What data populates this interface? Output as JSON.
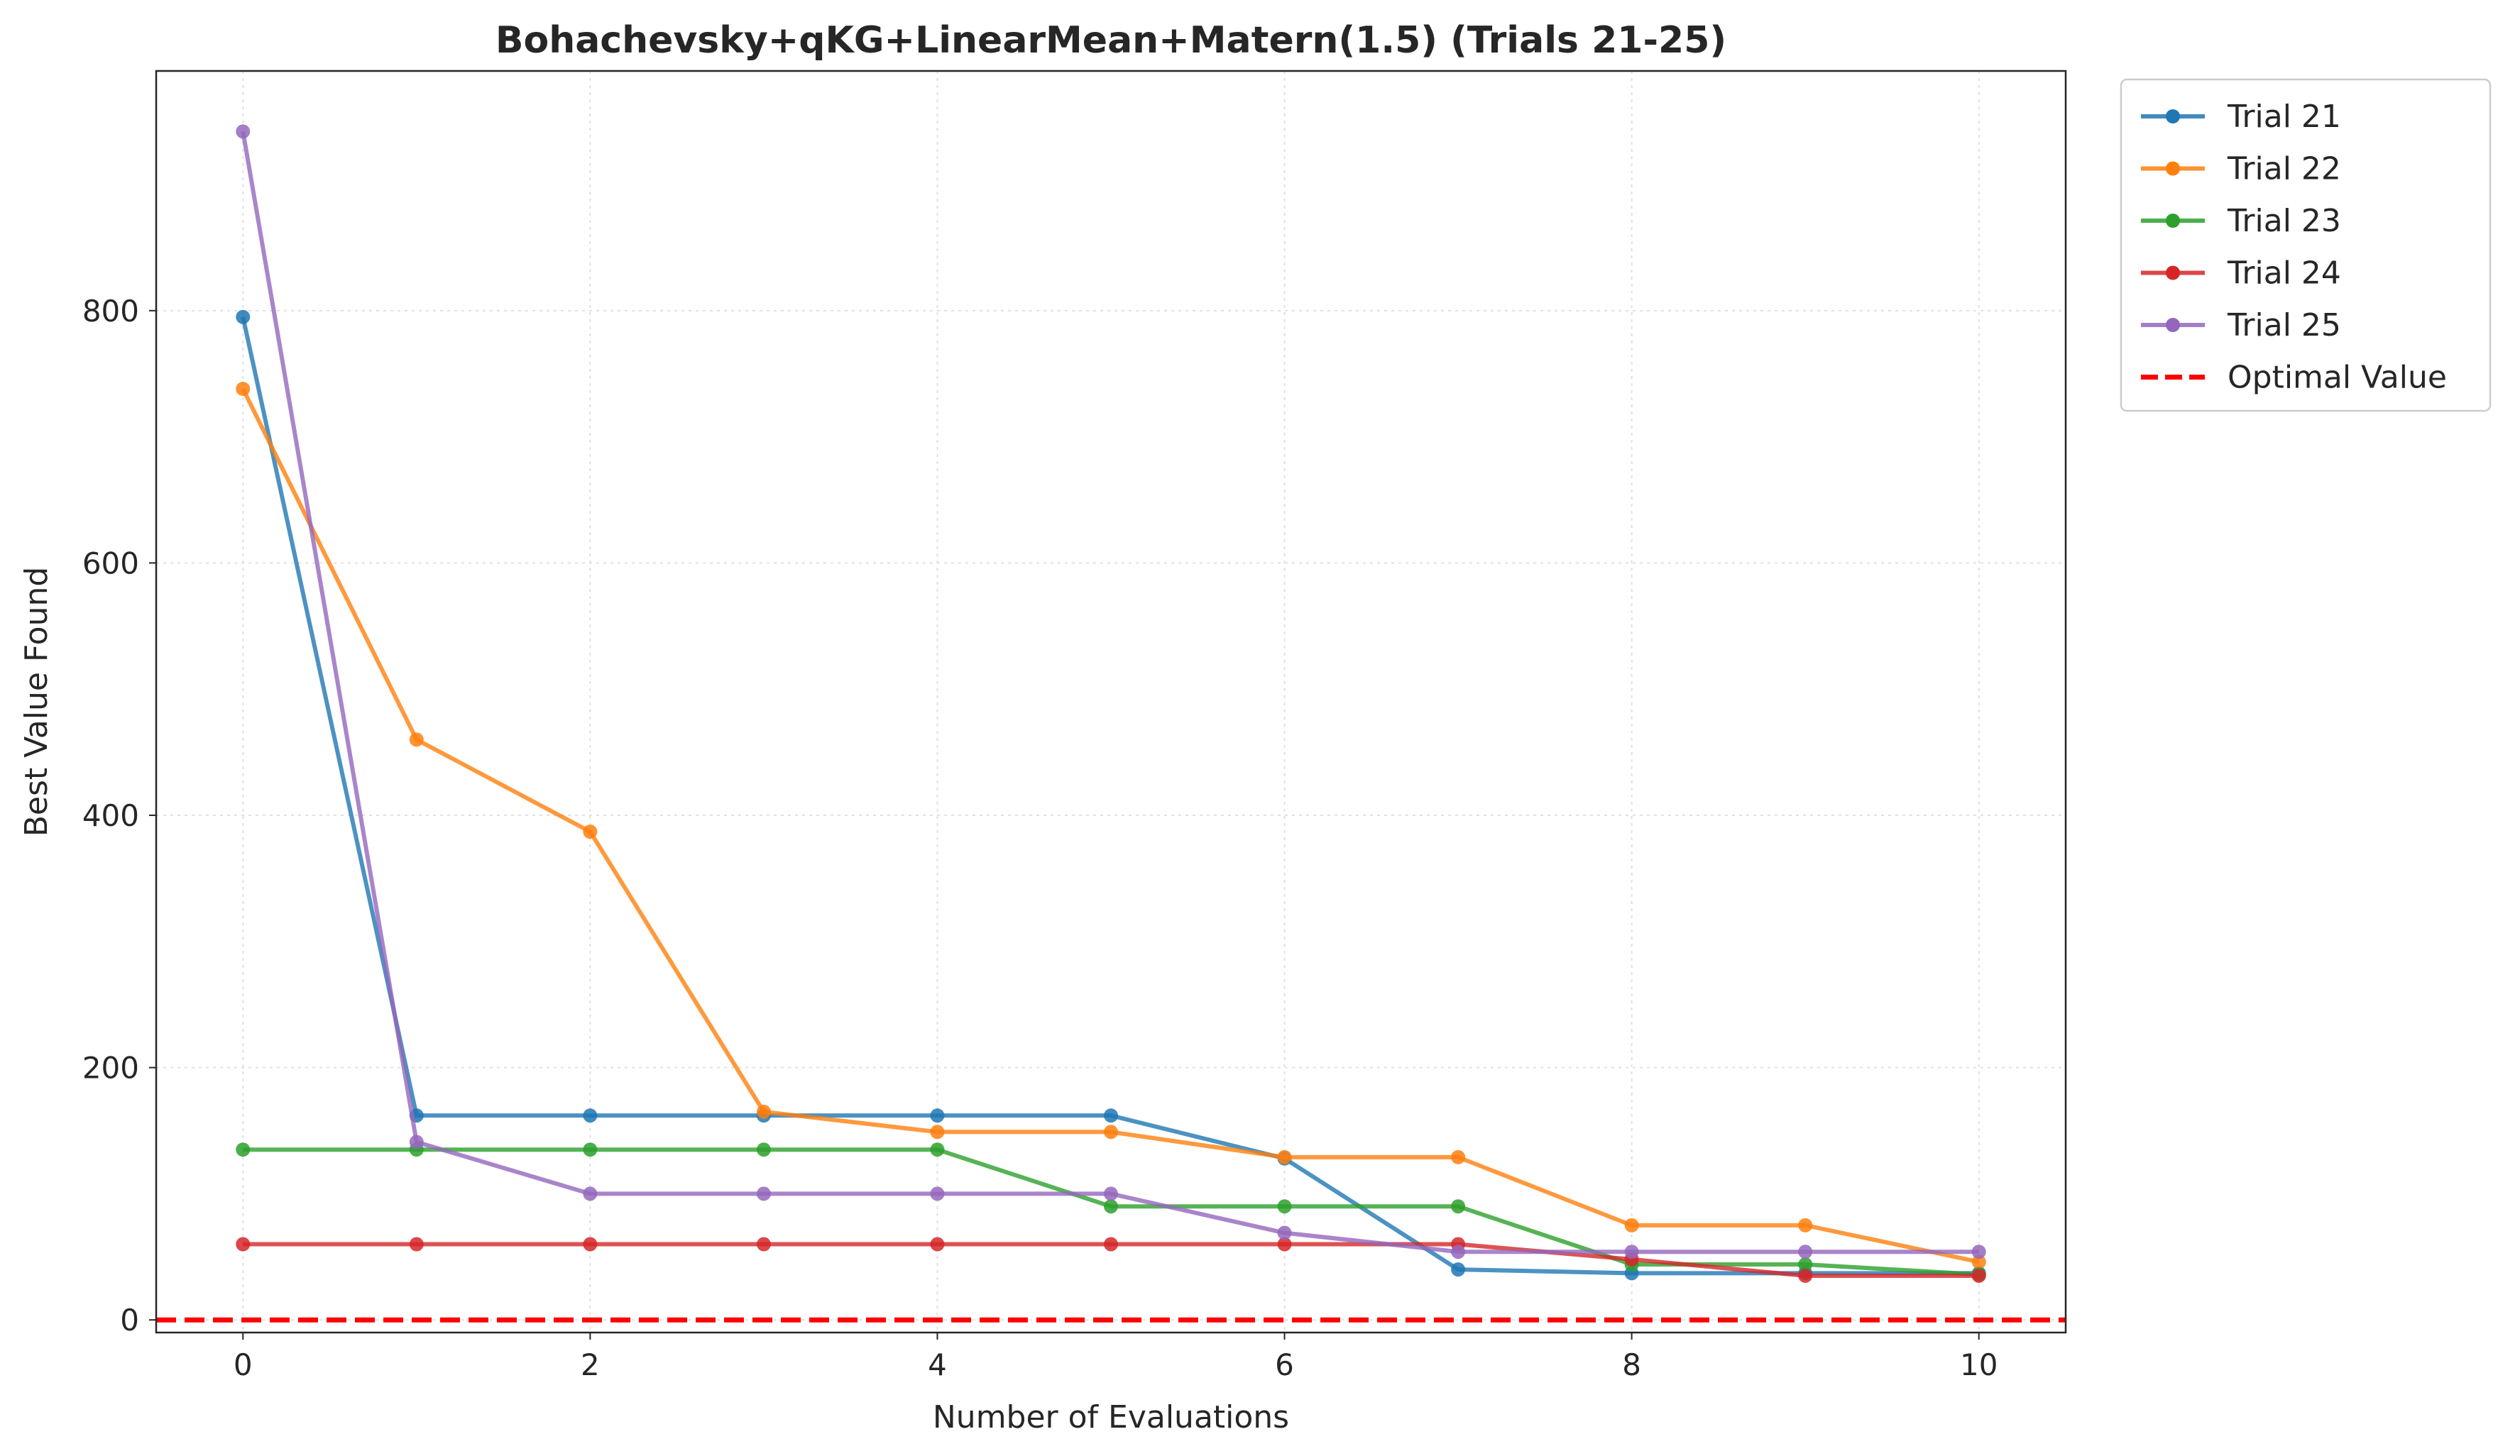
{
  "chart_data": {
    "type": "line",
    "title": "Bohachevsky+qKG+LinearMean+Matern(1.5) (Trials 21-25)",
    "xlabel": "Number of Evaluations",
    "ylabel": "Best Value Found",
    "xlim": [
      -0.5,
      10.5
    ],
    "ylim": [
      -10,
      990
    ],
    "xticks": [
      0,
      2,
      4,
      6,
      8,
      10
    ],
    "yticks": [
      0,
      200,
      400,
      600,
      800
    ],
    "grid": true,
    "legend_position": "outside-top-right",
    "x": [
      0,
      1,
      2,
      3,
      4,
      5,
      6,
      7,
      8,
      9,
      10
    ],
    "series": [
      {
        "name": "Trial 21",
        "color": "#1f77b4",
        "values": [
          795,
          162,
          162,
          162,
          162,
          162,
          128,
          40,
          37,
          37,
          37
        ]
      },
      {
        "name": "Trial 22",
        "color": "#ff7f0e",
        "values": [
          738,
          460,
          387,
          165,
          149,
          149,
          129,
          129,
          75,
          75,
          46
        ]
      },
      {
        "name": "Trial 23",
        "color": "#2ca02c",
        "values": [
          135,
          135,
          135,
          135,
          135,
          90,
          90,
          90,
          44,
          44,
          36
        ]
      },
      {
        "name": "Trial 24",
        "color": "#d62728",
        "values": [
          60,
          60,
          60,
          60,
          60,
          60,
          60,
          60,
          48,
          35,
          35
        ]
      },
      {
        "name": "Trial 25",
        "color": "#9467bd",
        "values": [
          942,
          141,
          100,
          100,
          100,
          100,
          69,
          54,
          54,
          54,
          54
        ]
      }
    ],
    "reference_line": {
      "name": "Optimal Value",
      "value": 0,
      "color": "#ff0000",
      "style": "dashed"
    }
  }
}
